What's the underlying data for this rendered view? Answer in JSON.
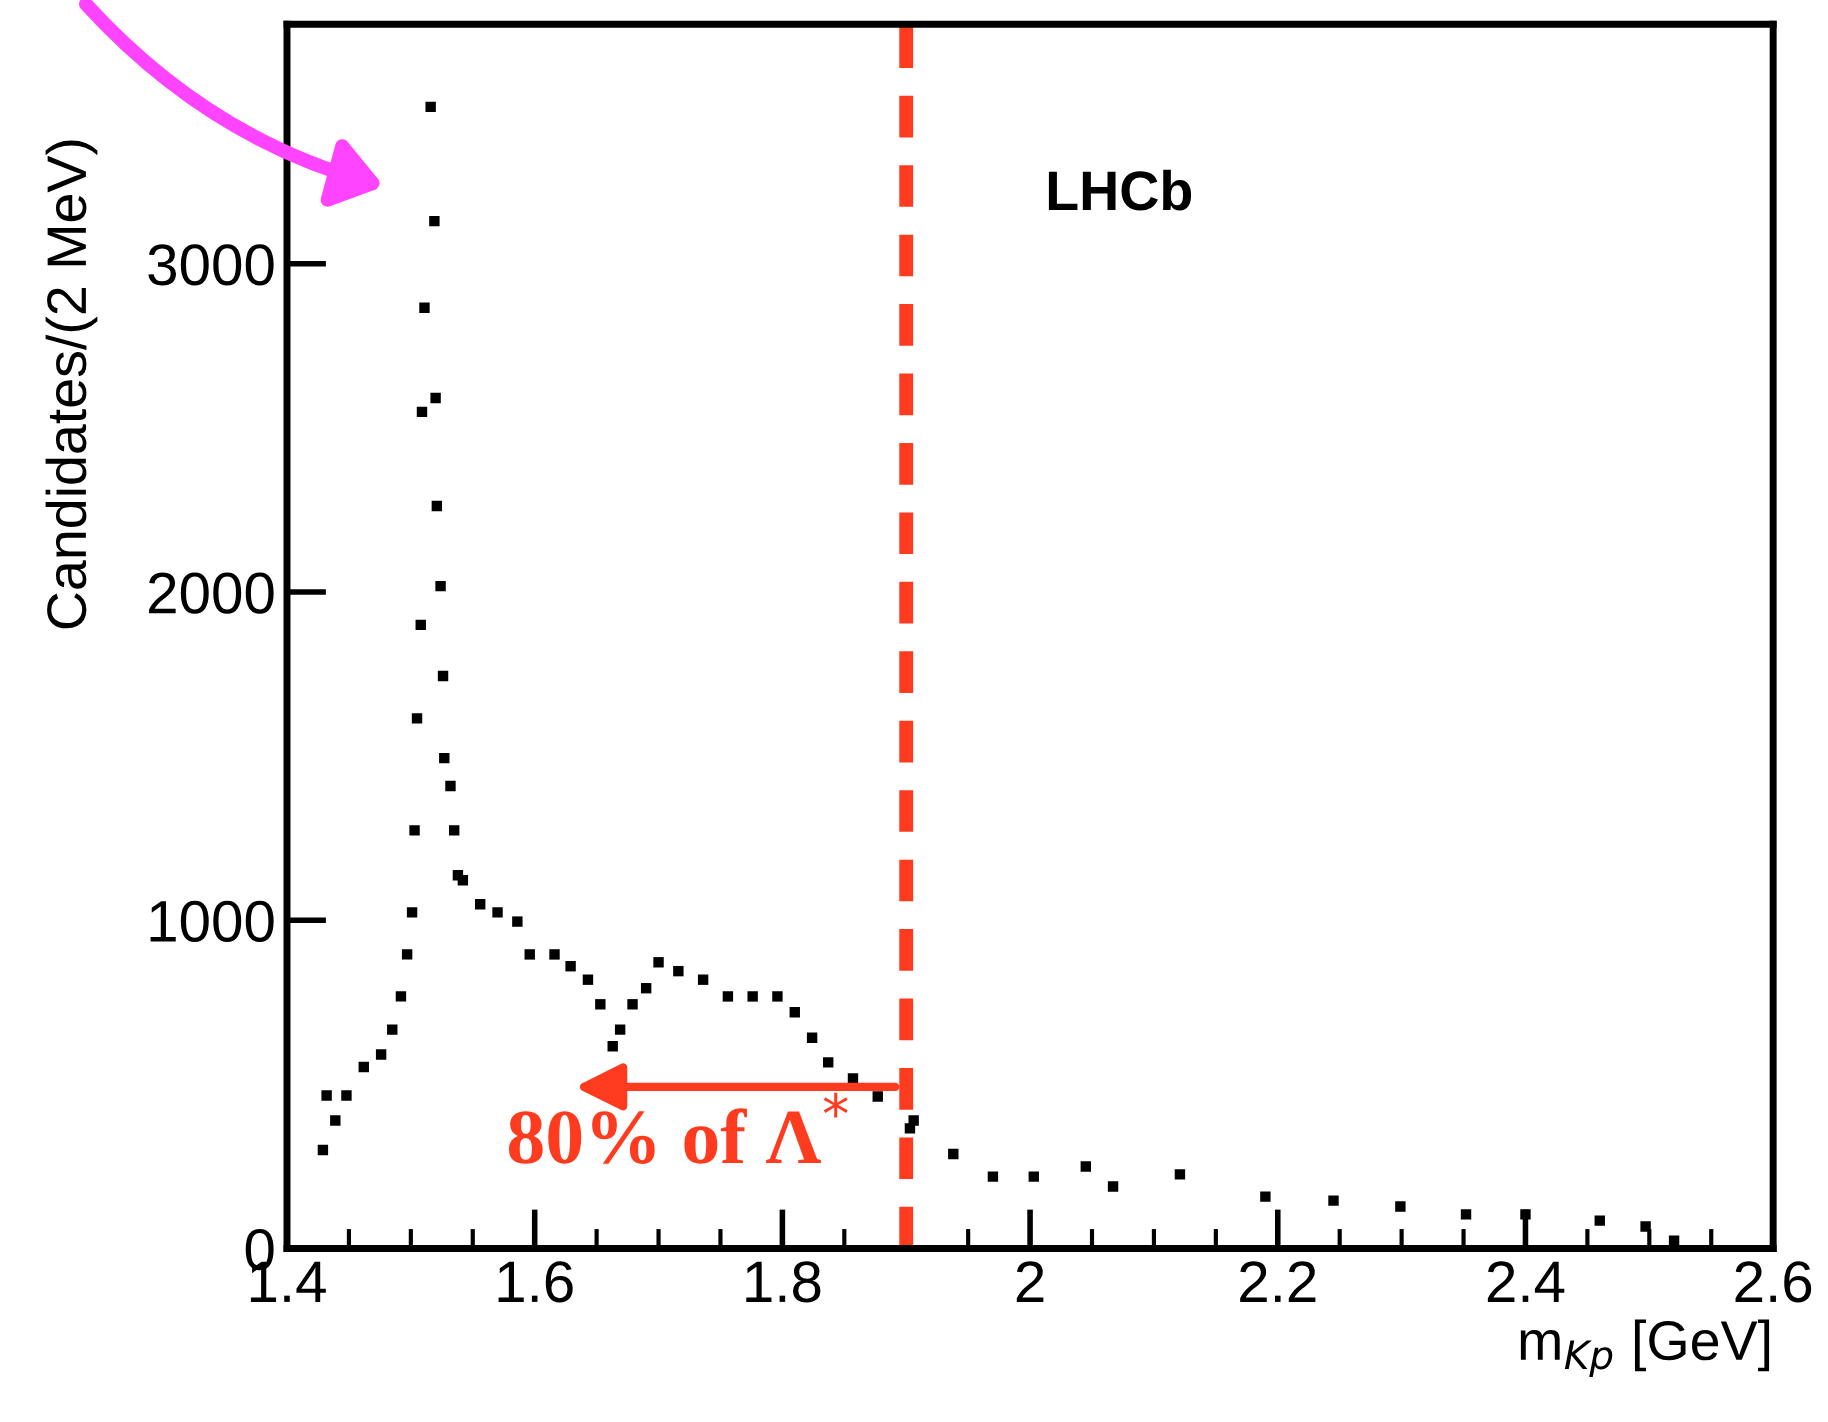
{
  "chart_data": {
    "type": "scatter",
    "xlabel": "m$_{Kp}$ [GeV]",
    "ylabel": "Candidates/(2 MeV)",
    "xlim": [
      1.4,
      2.6
    ],
    "ylim": [
      0,
      3730
    ],
    "xticks": [
      1.4,
      1.6,
      1.8,
      2,
      2.2,
      2.4,
      2.6
    ],
    "yticks": [
      0,
      1000,
      2000,
      3000
    ],
    "grid": false,
    "marker": "square",
    "series": [
      {
        "color": "#000000",
        "x": [
          1.429,
          1.432,
          1.439,
          1.448,
          1.462,
          1.476,
          1.485,
          1.492,
          1.497,
          1.501,
          1.503,
          1.505,
          1.508,
          1.509,
          1.511,
          1.516,
          1.519,
          1.52,
          1.521,
          1.524,
          1.526,
          1.527,
          1.532,
          1.535,
          1.538,
          1.542,
          1.556,
          1.57,
          1.586,
          1.596,
          1.616,
          1.629,
          1.643,
          1.653,
          1.663,
          1.669,
          1.679,
          1.69,
          1.7,
          1.716,
          1.736,
          1.756,
          1.776,
          1.796,
          1.81,
          1.824,
          1.837,
          1.857,
          1.877,
          1.903,
          1.906,
          1.938,
          1.97,
          2.003,
          2.045,
          2.067,
          2.121,
          2.19,
          2.245,
          2.299,
          2.352,
          2.4,
          2.46,
          2.497,
          2.52
        ],
        "values": [
          300,
          466,
          390,
          466,
          553,
          591,
          667,
          768,
          896,
          1024,
          1274,
          1615,
          1900,
          2549,
          2866,
          3478,
          3130,
          2591,
          2262,
          2018,
          1744,
          1494,
          1409,
          1274,
          1137,
          1122,
          1049,
          1024,
          996,
          896,
          896,
          860,
          819,
          744,
          616,
          667,
          744,
          793,
          872,
          845,
          819,
          768,
          768,
          768,
          720,
          642,
          567,
          518,
          463,
          366,
          390,
          288,
          219,
          219,
          250,
          189,
          226,
          158,
          146,
          128,
          104,
          104,
          85,
          67,
          24
        ]
      }
    ],
    "ref_lines": [
      {
        "axis": "x",
        "value": 1.9,
        "color": "#ff3b1f",
        "line_style": "dashed"
      }
    ],
    "annotations": [
      "LHCb",
      "80% of Λ$^{*}$"
    ]
  }
}
